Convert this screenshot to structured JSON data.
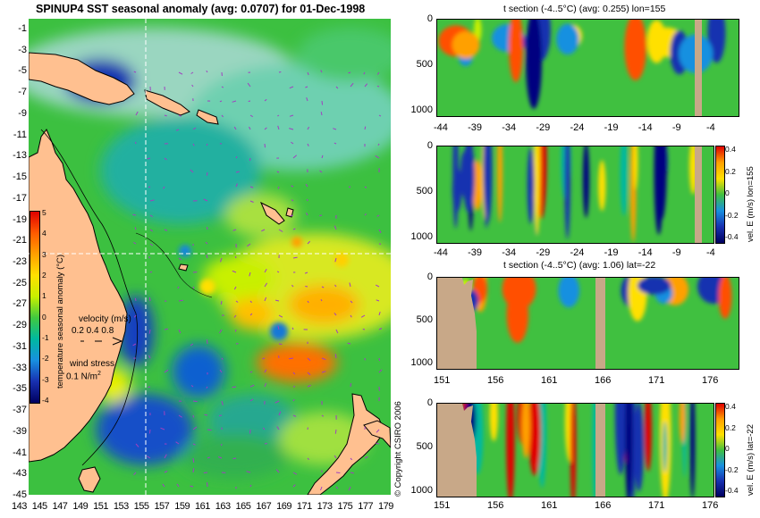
{
  "map": {
    "title": "SPINUP4 SST seasonal anomaly (avg: 0.0707) for 01-Dec-1998",
    "lat_labels": [
      "-1",
      "-3",
      "-5",
      "-7",
      "-9",
      "-11",
      "-13",
      "-15",
      "-17",
      "-19",
      "-21",
      "-23",
      "-25",
      "-27",
      "-29",
      "-31",
      "-33",
      "-35",
      "-37",
      "-39",
      "-41",
      "-43",
      "-45"
    ],
    "lon_labels": [
      "143",
      "145",
      "147",
      "149",
      "151",
      "153",
      "155",
      "157",
      "159",
      "161",
      "163",
      "165",
      "167",
      "169",
      "171",
      "173",
      "175",
      "177",
      "179"
    ],
    "colorbar": {
      "label": "temperature seasonal anomaly (°C)",
      "ticks": [
        "5",
        "4",
        "3",
        "2",
        "1",
        "0",
        "-1",
        "-2",
        "-3",
        "-4"
      ],
      "stops": [
        "#e00000",
        "#ff5a00",
        "#ffa000",
        "#ffe000",
        "#c8f000",
        "#40c840",
        "#00b8a0",
        "#1890e0",
        "#1830b0",
        "#000060"
      ]
    },
    "velocity_key": {
      "label": "velocity (m/s)",
      "values": "0.2 0.4 0.8"
    },
    "wind_key": {
      "label": "wind stress",
      "value": "0.1 N/m",
      "sup": "2"
    },
    "land_color": "#ffc090",
    "copyright": "© Copyright CSIRO 2006"
  },
  "panels": [
    {
      "title": "t section (-4..5°C) (avg: 0.255) lon=155",
      "y_ticks": [
        "0",
        "500",
        "1000"
      ],
      "x_ticks": [
        "-44",
        "-39",
        "-34",
        "-29",
        "-24",
        "-19",
        "-14",
        "-9",
        "-4"
      ]
    },
    {
      "title": "",
      "y_ticks": [
        "0",
        "500",
        "1000"
      ],
      "x_ticks": [
        "-44",
        "-39",
        "-34",
        "-29",
        "-24",
        "-19",
        "-14",
        "-9",
        "-4"
      ],
      "colorbar_label": "vel. E (m/s) lon=155",
      "colorbar_ticks": [
        "0.4",
        "0.2",
        "0",
        "-0.2",
        "-0.4"
      ]
    },
    {
      "title": "t section (-4..5°C) (avg: 1.06) lat=-22",
      "y_ticks": [
        "0",
        "500",
        "1000"
      ],
      "x_ticks": [
        "151",
        "156",
        "161",
        "166",
        "171",
        "176"
      ]
    },
    {
      "title": "",
      "y_ticks": [
        "0",
        "500",
        "1000"
      ],
      "x_ticks": [
        "151",
        "156",
        "161",
        "166",
        "171",
        "176"
      ],
      "colorbar_label": "vel. E (m/s) lat=-22",
      "colorbar_ticks": [
        "0.4",
        "0.2",
        "0",
        "-0.2",
        "-0.4"
      ]
    }
  ],
  "section_land_color": "#c8a888"
}
